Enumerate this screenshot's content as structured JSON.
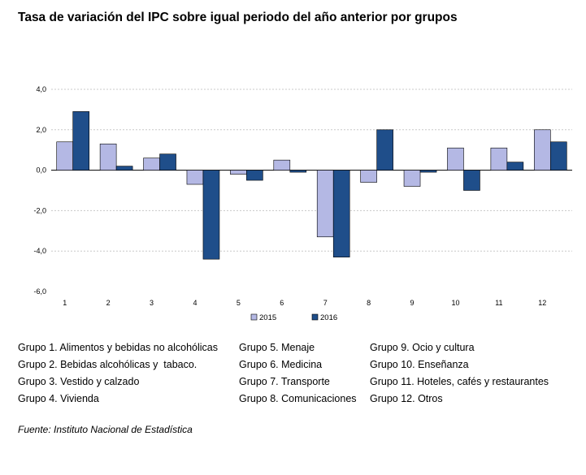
{
  "title": "Tasa de variación del IPC sobre igual periodo del año anterior por grupos",
  "chart_data": {
    "type": "bar",
    "categories": [
      "1",
      "2",
      "3",
      "4",
      "5",
      "6",
      "7",
      "8",
      "9",
      "10",
      "11",
      "12"
    ],
    "series": [
      {
        "name": "2015",
        "values": [
          1.4,
          1.3,
          0.6,
          -0.7,
          -0.2,
          0.5,
          -3.3,
          -0.6,
          -0.8,
          1.1,
          1.1,
          2.0
        ],
        "color": "#b4b8e4"
      },
      {
        "name": "2016",
        "values": [
          2.9,
          0.2,
          0.8,
          -4.4,
          -0.5,
          -0.1,
          -4.3,
          2.0,
          -0.1,
          -1.0,
          0.4,
          1.4
        ],
        "color": "#1f4e8a"
      }
    ],
    "ylim": [
      -6,
      4
    ],
    "yticks": [
      "4,0",
      "2,0",
      "0,0",
      "-2,0",
      "-4,0",
      "-6,0"
    ],
    "grid": true,
    "legend": "bottom"
  },
  "groups": {
    "col1": [
      "Grupo 1. Alimentos y bebidas no alcohólicas",
      "Grupo 2. Bebidas alcohólicas y  tabaco.",
      "Grupo 3. Vestido y calzado",
      "Grupo 4. Vivienda"
    ],
    "col2": [
      "Grupo 5. Menaje",
      "Grupo 6. Medicina",
      "Grupo 7. Transporte",
      "Grupo 8. Comunicaciones"
    ],
    "col3": [
      "Grupo 9. Ocio y cultura",
      "Grupo 10. Enseñanza",
      "Grupo 11. Hoteles, cafés y restaurantes",
      "Grupo 12. Otros"
    ]
  },
  "source": "Fuente: Instituto Nacional de Estadística"
}
